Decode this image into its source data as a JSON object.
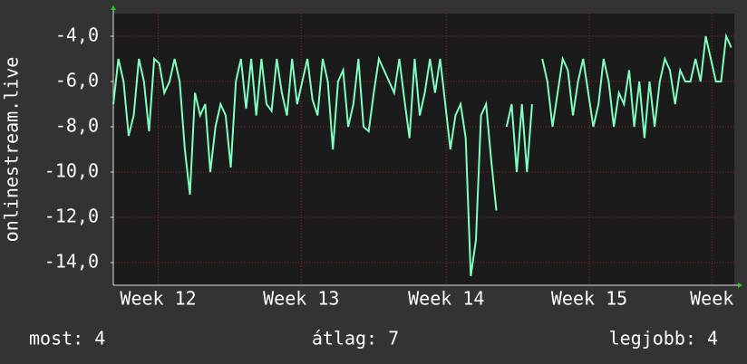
{
  "chart_data": {
    "type": "line",
    "ylabel": "onlinestream.live",
    "x": [
      0,
      0.25,
      0.5,
      0.75,
      1,
      1.25,
      1.5,
      1.75,
      2,
      2.25,
      2.5,
      2.75,
      3,
      3.25,
      3.5,
      3.75,
      4,
      4.25,
      4.5,
      4.75,
      5,
      5.25,
      5.5,
      5.75,
      6,
      6.25,
      6.5,
      6.75,
      7,
      7.25,
      7.5,
      7.75,
      8,
      8.25,
      8.5,
      8.75,
      9,
      9.25,
      9.5,
      9.75,
      10,
      10.25,
      10.5,
      10.75,
      11,
      11.25,
      11.5,
      11.75,
      12,
      12.25,
      12.5,
      12.75,
      13,
      13.25,
      13.5,
      13.75,
      14,
      14.25,
      14.5,
      14.75,
      15,
      15.25,
      15.5,
      15.75,
      16,
      16.25,
      16.5,
      16.75,
      17,
      17.25,
      17.5,
      17.75,
      18,
      18.25,
      18.5,
      18.75,
      19,
      19.25,
      19.5,
      19.75,
      20,
      20.25,
      20.5,
      20.75,
      21,
      21.25,
      21.5,
      21.75,
      22,
      22.25,
      22.5,
      22.75,
      23,
      23.25,
      23.5,
      23.75,
      24,
      24.25,
      24.5,
      24.75,
      25,
      25.25,
      25.5,
      25.75,
      26,
      26.25,
      26.5,
      26.75,
      27,
      27.25,
      27.5,
      27.75,
      28,
      28.25,
      28.5,
      28.75,
      29,
      29.25,
      29.5,
      29.75,
      30,
      30.25
    ],
    "series": [
      {
        "name": "onlinestream.live",
        "color": "#80ffbf",
        "values": [
          -7,
          -5,
          -6,
          -8.4,
          -7.5,
          -5,
          -6,
          -8.2,
          -5,
          -5.2,
          -6.5,
          -6,
          -5,
          -6,
          -9,
          -11,
          -6.5,
          -7.5,
          -7,
          -10,
          -8,
          -7,
          -7.5,
          -9.8,
          -6,
          -5,
          -7.2,
          -5,
          -7.5,
          -5,
          -7,
          -7.3,
          -5,
          -6.5,
          -7.5,
          -5,
          -7,
          -6,
          -5,
          -6.8,
          -7.5,
          -5,
          -6,
          -9,
          -6,
          -5.5,
          -8,
          -7,
          -5,
          -8,
          -8.2,
          -6.5,
          -5,
          -5.5,
          -6,
          -6.5,
          -5,
          -6.8,
          -8.5,
          -5,
          -7.5,
          -6.5,
          -5,
          -6.5,
          -5,
          -7,
          -9,
          -7.5,
          -7,
          -8.5,
          -14.6,
          -13,
          -7.5,
          -7,
          -9.5,
          -11.7,
          null,
          -8,
          -7,
          -10,
          -7,
          -10,
          -7,
          null,
          -5,
          -6,
          -8,
          -6.5,
          -5,
          -5.5,
          -7.5,
          -6,
          -5,
          -6.5,
          -8,
          -7,
          -5,
          -6,
          -8,
          -6.5,
          -7,
          -5.5,
          -8,
          -6,
          -8.5,
          -6,
          -8,
          -6,
          -5,
          -5.5,
          -7,
          -5.5,
          -6,
          -6,
          -5,
          -6,
          -4,
          -5,
          -6,
          -6,
          -4,
          -4.5
        ]
      }
    ],
    "xlim": [
      0,
      30.4
    ],
    "xticks": [
      {
        "value": 2.2,
        "label": "Week 12"
      },
      {
        "value": 9.2,
        "label": "Week 13"
      },
      {
        "value": 16.3,
        "label": "Week 14"
      },
      {
        "value": 23.3,
        "label": "Week 15"
      },
      {
        "value": 29.3,
        "label": "Week"
      }
    ],
    "ylim": [
      -15,
      -3
    ],
    "yticks": [
      {
        "value": -4,
        "label": "-4,0"
      },
      {
        "value": -6,
        "label": "-6,0"
      },
      {
        "value": -8,
        "label": "-8,0"
      },
      {
        "value": -10,
        "label": "-10,0"
      },
      {
        "value": -12,
        "label": "-12,0"
      },
      {
        "value": -14,
        "label": "-14,0"
      }
    ],
    "grid": true,
    "footer": [
      "most: 4",
      "átlag: 7",
      "legjobb: 4"
    ]
  }
}
